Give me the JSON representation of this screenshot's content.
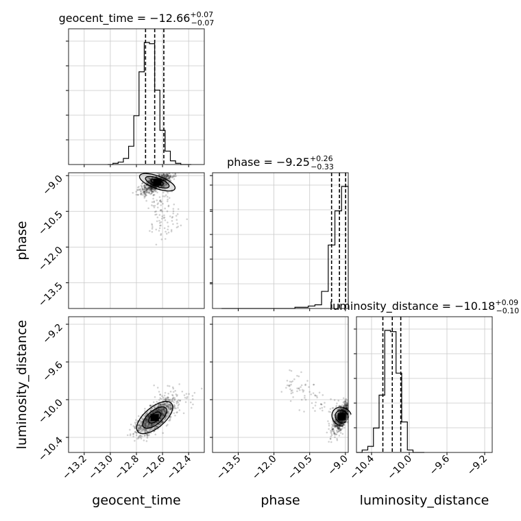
{
  "chart_data": {
    "type": "corner",
    "params": [
      "geocent_time",
      "phase",
      "luminosity_distance"
    ],
    "axes": [
      {
        "label": "geocent_time",
        "range": [
          -13.32,
          -12.28
        ],
        "ticks": [
          -13.2,
          -13.0,
          -12.8,
          -12.6,
          -12.4
        ],
        "tick_labels": [
          "−13.2",
          "−13.0",
          "−12.8",
          "−12.6",
          "−12.4"
        ]
      },
      {
        "label": "phase",
        "range": [
          -14.58,
          -8.88
        ],
        "ticks": [
          -13.5,
          -12.0,
          -10.5,
          -9.0
        ],
        "tick_labels": [
          "−13.5",
          "−12.0",
          "−10.5",
          "−9.0"
        ]
      },
      {
        "label": "luminosity_distance",
        "range": [
          -10.56,
          -9.12
        ],
        "ticks": [
          -10.4,
          -10.0,
          -9.6,
          -9.2
        ],
        "tick_labels": [
          "−10.4",
          "−10.0",
          "−9.6",
          "−9.2"
        ]
      }
    ],
    "summaries": [
      {
        "name": "geocent_time",
        "median": "−12.66",
        "plus": "+0.07",
        "minus": "−0.07",
        "quantiles": [
          -12.73,
          -12.66,
          -12.59
        ]
      },
      {
        "name": "phase",
        "median": "−9.25",
        "plus": "+0.26",
        "minus": "−0.33",
        "quantiles": [
          -9.58,
          -9.25,
          -8.99
        ]
      },
      {
        "name": "luminosity_distance",
        "median": "−10.18",
        "plus": "+0.09",
        "minus": "−0.10",
        "quantiles": [
          -10.28,
          -10.18,
          -10.09
        ]
      }
    ],
    "histograms": [
      {
        "param": "geocent_time",
        "edges": [
          -13.02,
          -12.98,
          -12.94,
          -12.9,
          -12.86,
          -12.82,
          -12.78,
          -12.74,
          -12.7,
          -12.66,
          -12.62,
          -12.58,
          -12.54,
          -12.5,
          -12.46,
          -12.42,
          -12.38
        ],
        "counts": [
          0,
          1,
          2,
          5,
          15,
          40,
          76,
          100,
          99,
          61,
          28,
          11,
          3,
          1,
          0,
          0
        ]
      },
      {
        "param": "phase",
        "edges": [
          -14.2,
          -13.92,
          -13.64,
          -13.36,
          -13.08,
          -12.8,
          -12.52,
          -12.24,
          -11.96,
          -11.68,
          -11.4,
          -11.12,
          -10.84,
          -10.56,
          -10.28,
          -10.0,
          -9.72,
          -9.44,
          -9.16,
          -8.88
        ],
        "counts": [
          0,
          0,
          0,
          0,
          0,
          0,
          0,
          0,
          0,
          0,
          0,
          1,
          1,
          2,
          3,
          14,
          52,
          80,
          100
        ]
      },
      {
        "param": "luminosity_distance",
        "edges": [
          -10.56,
          -10.5,
          -10.44,
          -10.38,
          -10.32,
          -10.26,
          -10.2,
          -10.14,
          -10.08,
          -10.02,
          -9.96,
          -9.9,
          -9.84
        ],
        "counts": [
          0,
          2,
          5,
          20,
          47,
          100,
          99,
          65,
          25,
          2,
          0,
          0
        ]
      }
    ],
    "scatter_2d": [
      {
        "x_param": "geocent_time",
        "y_param": "phase",
        "center": [
          -12.64,
          -9.28
        ],
        "spread": [
          0.06,
          0.22
        ],
        "tail_toward": [
          -12.55,
          -11.5
        ],
        "points": 900
      },
      {
        "x_param": "geocent_time",
        "y_param": "luminosity_distance",
        "center": [
          -12.66,
          -10.19
        ],
        "spread": [
          0.07,
          0.09
        ],
        "tail_toward": [
          -12.45,
          -9.9
        ],
        "points": 900
      },
      {
        "x_param": "phase",
        "y_param": "luminosity_distance",
        "center": [
          -9.15,
          -10.18
        ],
        "spread": [
          0.18,
          0.08
        ],
        "tail_toward": [
          -11.5,
          -9.8
        ],
        "points": 800
      }
    ],
    "grid": true
  }
}
